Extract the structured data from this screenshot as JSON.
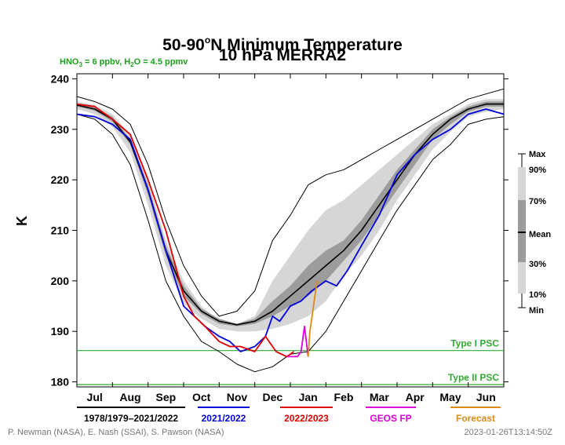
{
  "title_line1_pre": "50-90",
  "title_line1_sup": "o",
  "title_line1_post": "N Minimum Temperature",
  "title_line2": "10 hPa   MERRA2",
  "note": {
    "hno3_label": "HNO",
    "hno3_sub": "3",
    "hno3_val": " = 6 ppbv, H",
    "h2o_sub": "2",
    "h2o_val": "O = 4.5 ppmv"
  },
  "ylabel": "K",
  "credit_left": "P. Newman (NASA), E. Nash (SSAI), S. Pawson (NASA)",
  "credit_right": "2023-01-26T13:14:50Z",
  "colors": {
    "clim": "#000000",
    "y2122": "#0000dd",
    "y2223": "#dd0000",
    "geos": "#dd00dd",
    "forecast": "#e08a10",
    "psc": "#33aa33"
  },
  "chart_data": {
    "type": "line",
    "xlabel": "",
    "ylabel": "K",
    "ylim": [
      179,
      241
    ],
    "yticks": [
      180,
      190,
      200,
      210,
      220,
      230,
      240
    ],
    "months": [
      "Jul",
      "Aug",
      "Sep",
      "Oct",
      "Nov",
      "Dec",
      "Jan",
      "Feb",
      "Mar",
      "Apr",
      "May",
      "Jun"
    ],
    "xlim_months": [
      0,
      12
    ],
    "psc_lines": [
      {
        "name": "Type I PSC",
        "value": 186.2
      },
      {
        "name": "Type II PSC",
        "value": 179.0
      }
    ],
    "key": [
      {
        "label": "Max"
      },
      {
        "label": "90%"
      },
      {
        "label": "70%"
      },
      {
        "label": "Mean"
      },
      {
        "label": "30%"
      },
      {
        "label": "10%"
      },
      {
        "label": "Min"
      }
    ],
    "legend": [
      {
        "label": "1978/1979–2021/2022",
        "color": "#000000"
      },
      {
        "label": "2021/2022",
        "color": "#0000dd"
      },
      {
        "label": "2022/2023",
        "color": "#dd0000"
      },
      {
        "label": "GEOS FP",
        "color": "#dd00dd"
      },
      {
        "label": "Forecast",
        "color": "#e08a10"
      }
    ],
    "x": [
      0,
      0.5,
      1,
      1.5,
      2,
      2.5,
      3,
      3.5,
      4,
      4.5,
      5,
      5.5,
      6,
      6.5,
      7,
      7.5,
      8,
      8.5,
      9,
      9.5,
      10,
      10.5,
      11,
      11.5,
      12
    ],
    "series": [
      {
        "name": "Max",
        "values": [
          236.5,
          235.5,
          234,
          231,
          223,
          212,
          203,
          197,
          193,
          194,
          198,
          208,
          213,
          219,
          221,
          222,
          224,
          226,
          228,
          230,
          232,
          234,
          236,
          237,
          238
        ]
      },
      {
        "name": "90%",
        "values": [
          235.5,
          234.8,
          233,
          229,
          220,
          208,
          200,
          195,
          192,
          191.5,
          193,
          200,
          205,
          210,
          214,
          216,
          219,
          222,
          225,
          228,
          231,
          233,
          235,
          236,
          236
        ]
      },
      {
        "name": "70%",
        "values": [
          235,
          234.3,
          232.5,
          228,
          219,
          207,
          199,
          194.5,
          192.5,
          191.5,
          192.5,
          196,
          199,
          203,
          206,
          208,
          212,
          217,
          222,
          226,
          230,
          232.5,
          234.5,
          235.5,
          235.5
        ]
      },
      {
        "name": "Mean",
        "values": [
          234.8,
          234,
          232,
          227.5,
          218,
          206,
          198,
          194,
          192,
          191.3,
          192,
          194,
          197,
          200,
          203,
          206,
          210,
          215,
          220,
          225,
          229,
          232,
          234,
          235,
          235
        ]
      },
      {
        "name": "30%",
        "values": [
          234.5,
          233.7,
          231.5,
          227,
          217,
          205,
          197,
          193.5,
          191.5,
          191,
          191.5,
          193,
          195,
          197,
          200,
          204,
          208,
          213,
          218,
          223,
          228,
          231,
          233.5,
          234.5,
          234.5
        ]
      },
      {
        "name": "10%",
        "values": [
          234,
          233,
          230.5,
          225.5,
          215,
          203,
          195.5,
          192.5,
          190.5,
          190,
          190,
          190.5,
          191.5,
          193,
          196,
          201,
          205,
          210,
          216,
          221,
          226,
          229.5,
          232.5,
          233.5,
          234
        ]
      },
      {
        "name": "Min",
        "values": [
          233,
          232,
          229,
          223,
          212,
          200,
          193,
          188,
          186,
          183.5,
          182,
          183,
          185.5,
          186,
          190,
          196,
          202,
          208,
          214,
          219,
          224,
          227,
          231,
          232,
          232.5
        ]
      },
      {
        "name": "2021/2022",
        "x": [
          0,
          0.5,
          1,
          1.5,
          2,
          2.5,
          3,
          3.3,
          3.6,
          4,
          4.3,
          4.6,
          5,
          5.3,
          5.5,
          5.7,
          6,
          6.3,
          6.6,
          7,
          7.3,
          7.6,
          8,
          8.5,
          9,
          9.5,
          10,
          10.5,
          11,
          11.5,
          12
        ],
        "values": [
          233,
          232.5,
          231,
          228,
          218,
          206,
          195,
          193,
          191,
          189,
          188,
          186,
          187,
          189,
          193,
          192,
          195,
          196,
          198,
          200,
          199,
          202,
          207,
          213,
          221,
          225,
          228,
          230,
          233,
          234,
          233
        ]
      },
      {
        "name": "2022/2023",
        "x": [
          0,
          0.5,
          1,
          1.5,
          2,
          2.5,
          3,
          3.3,
          3.6,
          4,
          4.3,
          4.6,
          5,
          5.3,
          5.6,
          5.9,
          6.1
        ],
        "values": [
          235,
          234.5,
          232,
          229,
          220,
          210,
          197,
          193,
          191,
          188,
          187,
          187,
          186,
          189,
          186,
          185,
          186
        ]
      },
      {
        "name": "GEOS FP",
        "x": [
          5.9,
          6.05,
          6.2,
          6.3,
          6.4,
          6.5
        ],
        "values": [
          185,
          185,
          185,
          186,
          191,
          185
        ]
      },
      {
        "name": "Forecast",
        "x": [
          6.5,
          6.55,
          6.65,
          6.75
        ],
        "values": [
          185,
          190,
          195,
          200
        ]
      }
    ]
  }
}
